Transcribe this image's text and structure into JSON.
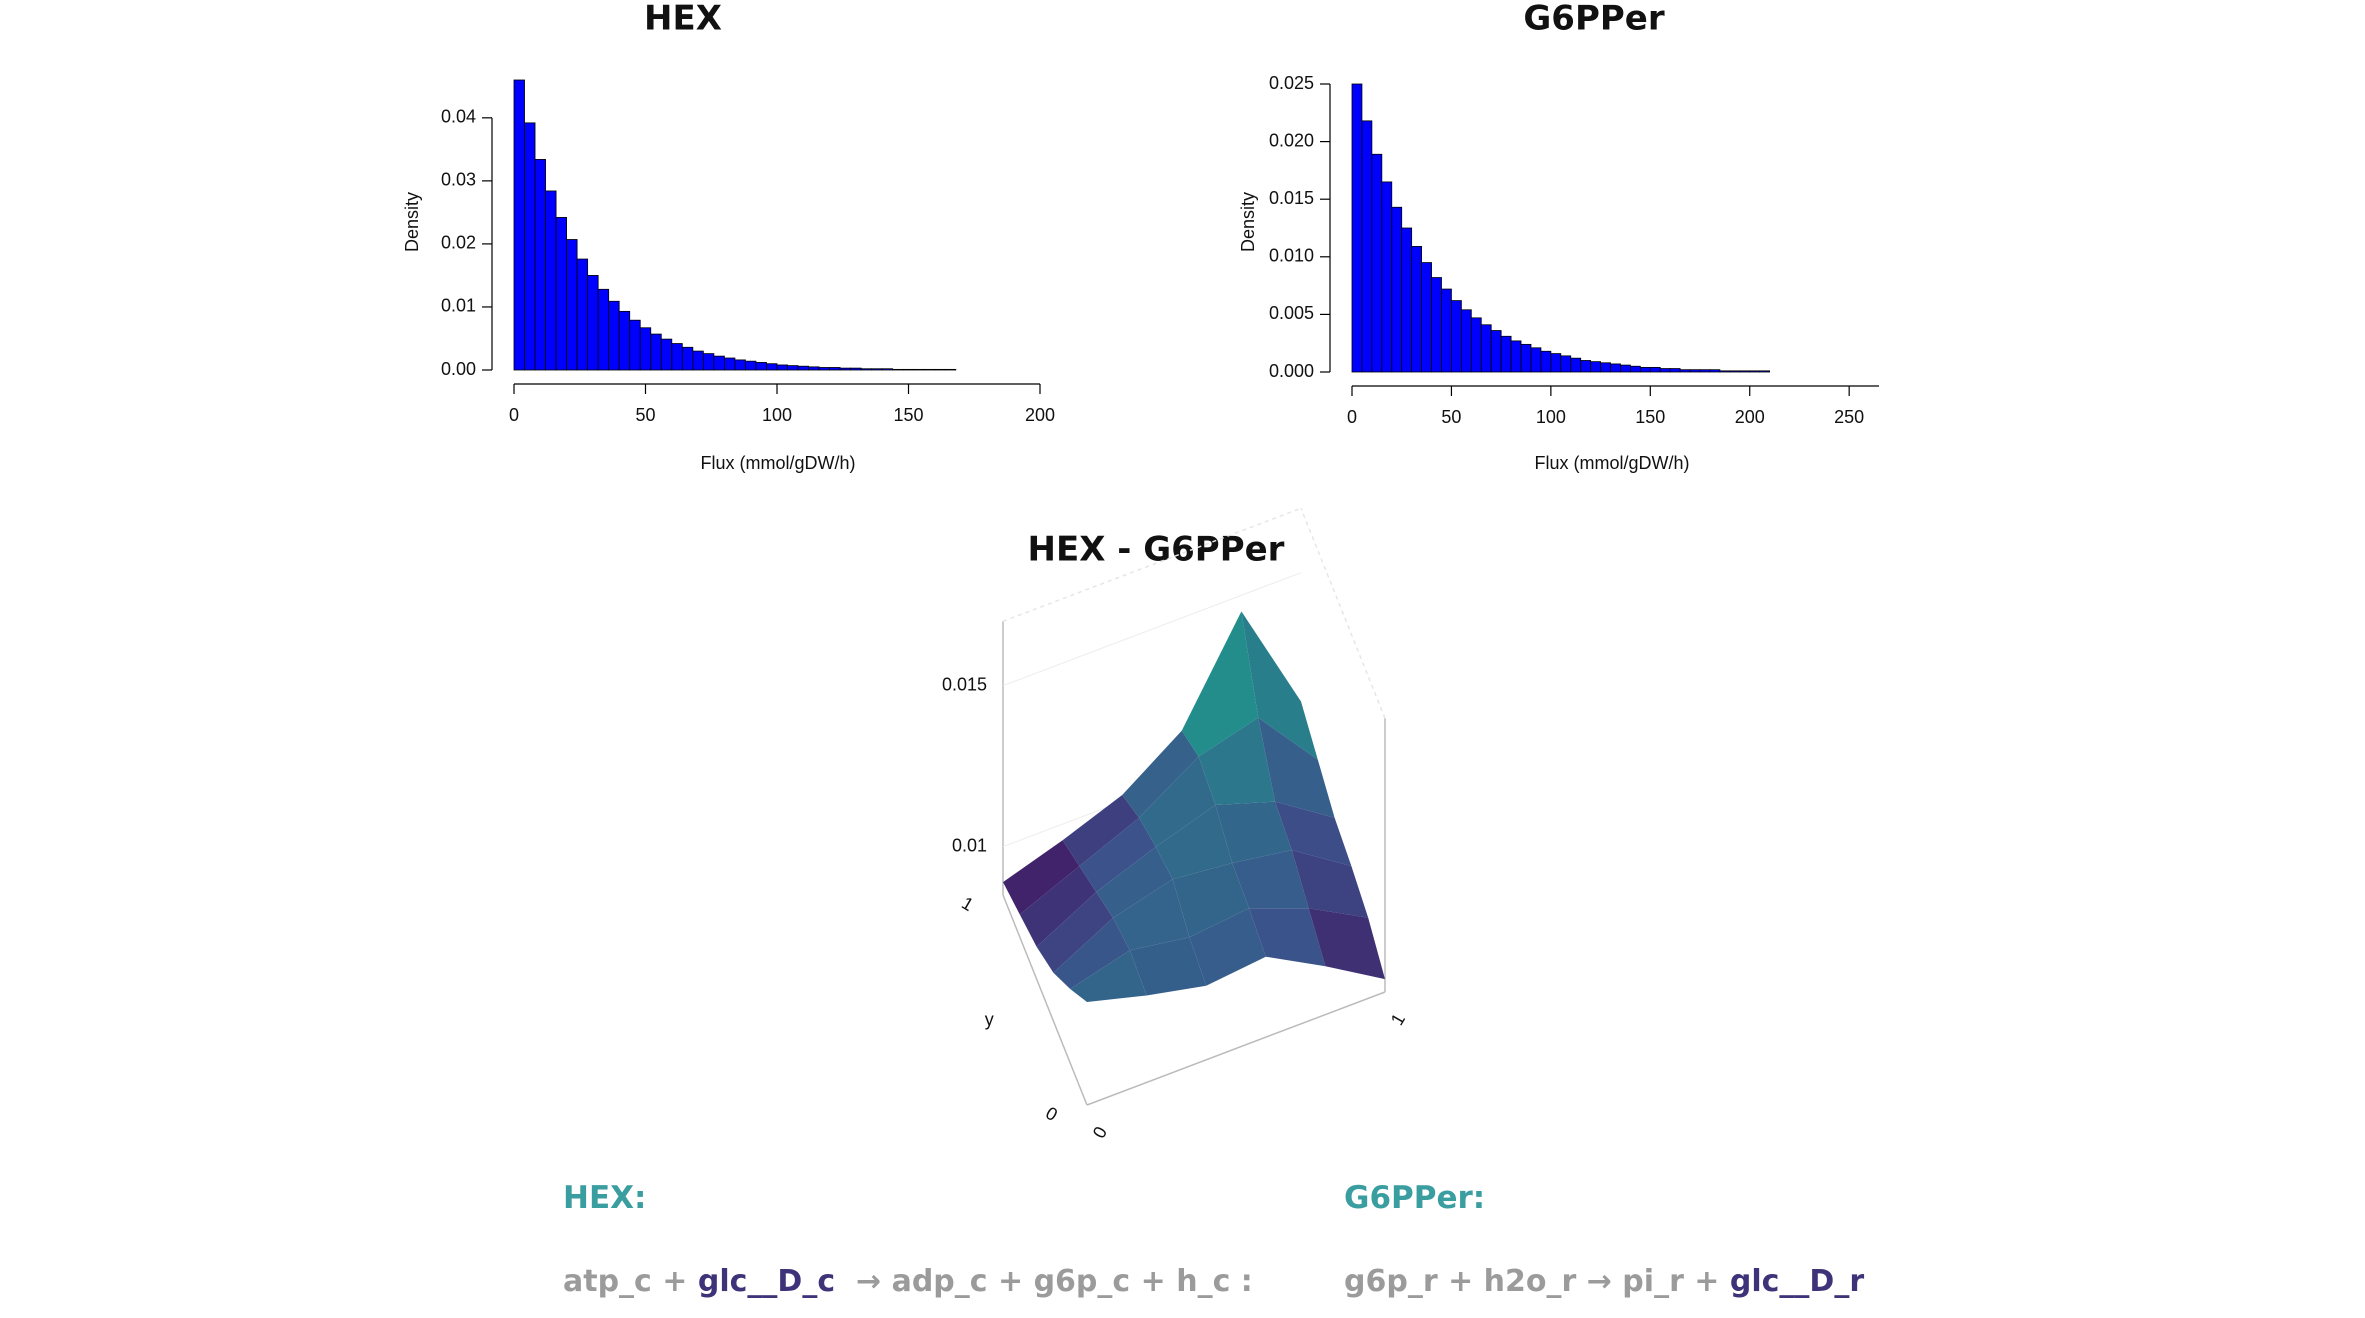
{
  "chart_data": [
    {
      "type": "histogram",
      "title": "HEX",
      "xlabel": "Flux (mmol/gDW/h)",
      "ylabel": "Density",
      "color": "#0000ff",
      "bins": [
        0,
        4,
        8,
        12,
        16,
        20,
        24,
        28,
        32,
        36,
        40,
        44,
        48,
        52,
        56,
        60,
        64,
        68,
        72,
        76,
        80,
        84,
        88,
        92,
        96,
        100,
        104,
        108,
        112,
        116,
        120,
        124,
        128,
        132,
        136,
        140,
        144,
        148,
        152,
        156,
        160,
        164,
        168,
        172,
        176,
        180,
        184,
        188,
        192,
        196,
        200
      ],
      "values": [
        0.046,
        0.0392,
        0.0334,
        0.0284,
        0.0242,
        0.0207,
        0.0176,
        0.015,
        0.0128,
        0.0109,
        0.0093,
        0.0079,
        0.0067,
        0.0057,
        0.0049,
        0.0042,
        0.0036,
        0.003,
        0.0026,
        0.0022,
        0.0019,
        0.0016,
        0.0014,
        0.0012,
        0.001,
        0.0008,
        0.0007,
        0.0006,
        0.0005,
        0.0004,
        0.0004,
        0.0003,
        0.0003,
        0.0002,
        0.0002,
        0.0002,
        0.0001,
        0.0001,
        0.0001,
        0.0001,
        0.0001,
        0.0001,
        0,
        0,
        0,
        0,
        0,
        0,
        0,
        0
      ],
      "xlim": [
        0,
        200
      ],
      "xticks": [
        0,
        50,
        100,
        150,
        200
      ],
      "ylim": [
        0,
        0.046
      ],
      "yticks": [
        {
          "value": 0,
          "label": "0.00"
        },
        0.01,
        0.02,
        0.03,
        0.04
      ]
    },
    {
      "type": "histogram",
      "title": "G6PPer",
      "xlabel": "Flux (mmol/gDW/h)",
      "ylabel": "Density",
      "color": "#0000ff",
      "bins": [
        0,
        5,
        10,
        15,
        20,
        25,
        30,
        35,
        40,
        45,
        50,
        55,
        60,
        65,
        70,
        75,
        80,
        85,
        90,
        95,
        100,
        105,
        110,
        115,
        120,
        125,
        130,
        135,
        140,
        145,
        150,
        155,
        160,
        165,
        170,
        175,
        180,
        185,
        190,
        195,
        200,
        205,
        210,
        215,
        220,
        225,
        230,
        235,
        240,
        245,
        250,
        255,
        260,
        265
      ],
      "values": [
        0.025,
        0.0218,
        0.0189,
        0.0165,
        0.0143,
        0.0125,
        0.0109,
        0.0095,
        0.0082,
        0.0072,
        0.0062,
        0.0054,
        0.0047,
        0.0041,
        0.0036,
        0.0031,
        0.0027,
        0.0024,
        0.0021,
        0.0018,
        0.0016,
        0.0014,
        0.0012,
        0.001,
        0.0009,
        0.0008,
        0.0007,
        0.0006,
        0.0005,
        0.0004,
        0.0004,
        0.0003,
        0.0003,
        0.0002,
        0.0002,
        0.0002,
        0.0002,
        0.0001,
        0.0001,
        0.0001,
        0.0001,
        0.0001,
        0,
        0,
        0,
        0,
        0,
        0,
        0,
        0,
        0,
        0,
        0
      ],
      "xlim": [
        0,
        265
      ],
      "xticks": [
        0,
        50,
        100,
        150,
        200,
        250
      ],
      "ylim": [
        0,
        0.025
      ],
      "yticks": [
        {
          "value": 0,
          "label": "0.000"
        },
        0.005,
        {
          "value": 0.01,
          "label": "0.010"
        },
        0.015,
        {
          "value": 0.02,
          "label": "0.020"
        },
        0.025
      ]
    },
    {
      "type": "surface",
      "title": "HEX - G6PPer",
      "ylabel": "y",
      "xlim": [
        0,
        1
      ],
      "xticks": [
        0,
        1
      ],
      "ylim": [
        0,
        1
      ],
      "yticks": [
        0,
        1
      ],
      "zlim": [
        0.0085,
        0.017
      ],
      "zticks": [
        0.01,
        0.015
      ],
      "z": [
        [
          0.0117,
          0.0112,
          0.0108,
          0.011,
          0.01,
          0.0089
        ],
        [
          0.0108,
          0.0113,
          0.011,
          0.0112,
          0.0105,
          0.0095
        ],
        [
          0.01,
          0.011,
          0.0115,
          0.0113,
          0.011,
          0.0098
        ],
        [
          0.0095,
          0.0105,
          0.0112,
          0.0118,
          0.0112,
          0.01
        ],
        [
          0.0092,
          0.01,
          0.0108,
          0.012,
          0.0125,
          0.0105
        ],
        [
          0.0089,
          0.0095,
          0.0102,
          0.0115,
          0.0145,
          0.011
        ]
      ]
    }
  ],
  "reactions": [
    {
      "name": "HEX:",
      "color": "#3a9ea0",
      "parts": [
        {
          "text": "atp_c + ",
          "color": "#9b9b9b"
        },
        {
          "text": "glc__D_c",
          "color": "#3e3378"
        },
        {
          "text": "  → adp_c + g6p_c + h_c :",
          "color": "#9b9b9b"
        }
      ]
    },
    {
      "name": "G6PPer:",
      "color": "#3a9ea0",
      "parts": [
        {
          "text": "g6p_r + h2o_r → pi_r + ",
          "color": "#9b9b9b"
        },
        {
          "text": "glc__D_r",
          "color": "#3e3378"
        }
      ]
    }
  ]
}
